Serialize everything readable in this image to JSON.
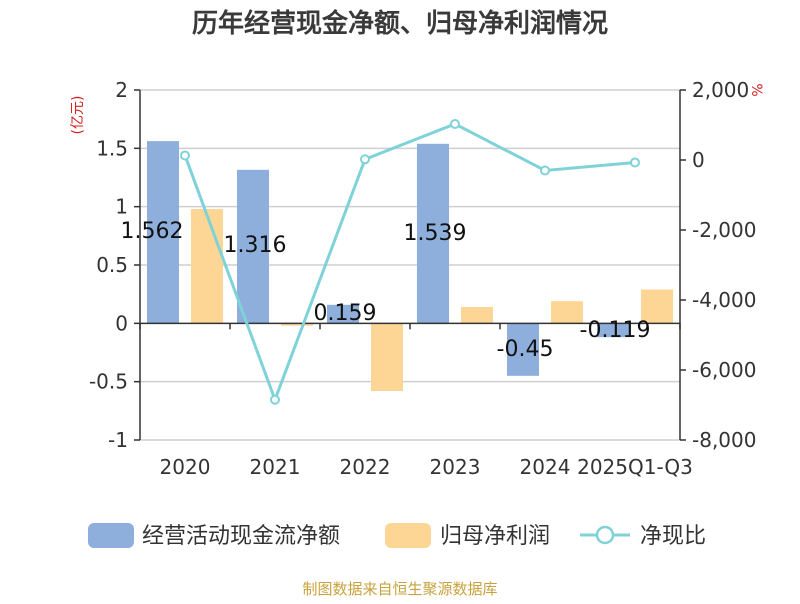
{
  "chart_data": {
    "type": "bar+line",
    "title": "历年经营现金净额、归母净利润情况",
    "y_left_unit": "(亿元)",
    "y_right_unit": "%",
    "ylim_left": [
      -1,
      2
    ],
    "ylim_right": [
      -8000,
      2000
    ],
    "y_left_ticks": [
      "2",
      "1.5",
      "1",
      "0.5",
      "0",
      "-0.5",
      "-1"
    ],
    "y_right_ticks": [
      "2,000",
      "0",
      "-2,000",
      "-4,000",
      "-6,000",
      "-8,000"
    ],
    "categories": [
      "2020",
      "2021",
      "2022",
      "2023",
      "2024",
      "2025Q1-Q3"
    ],
    "series": [
      {
        "name": "经营活动现金流净额",
        "type": "bar",
        "axis": "left",
        "color": "#8eaedb",
        "values": [
          1.562,
          1.316,
          0.159,
          1.539,
          -0.45,
          -0.119
        ],
        "labels": [
          "1.562",
          "1.316",
          "0.159",
          "1.539",
          "-0.45",
          "-0.119"
        ]
      },
      {
        "name": "归母净利润",
        "type": "bar",
        "axis": "left",
        "color": "#fdd696",
        "values": [
          0.98,
          -0.02,
          -0.58,
          0.14,
          0.19,
          0.29
        ]
      },
      {
        "name": "净现比",
        "type": "line",
        "axis": "right",
        "color": "#7fd3d8",
        "values": [
          130,
          -6850,
          20,
          1030,
          -300,
          -70
        ]
      }
    ]
  },
  "footer": {
    "source": "制图数据来自恒生聚源数据库"
  }
}
